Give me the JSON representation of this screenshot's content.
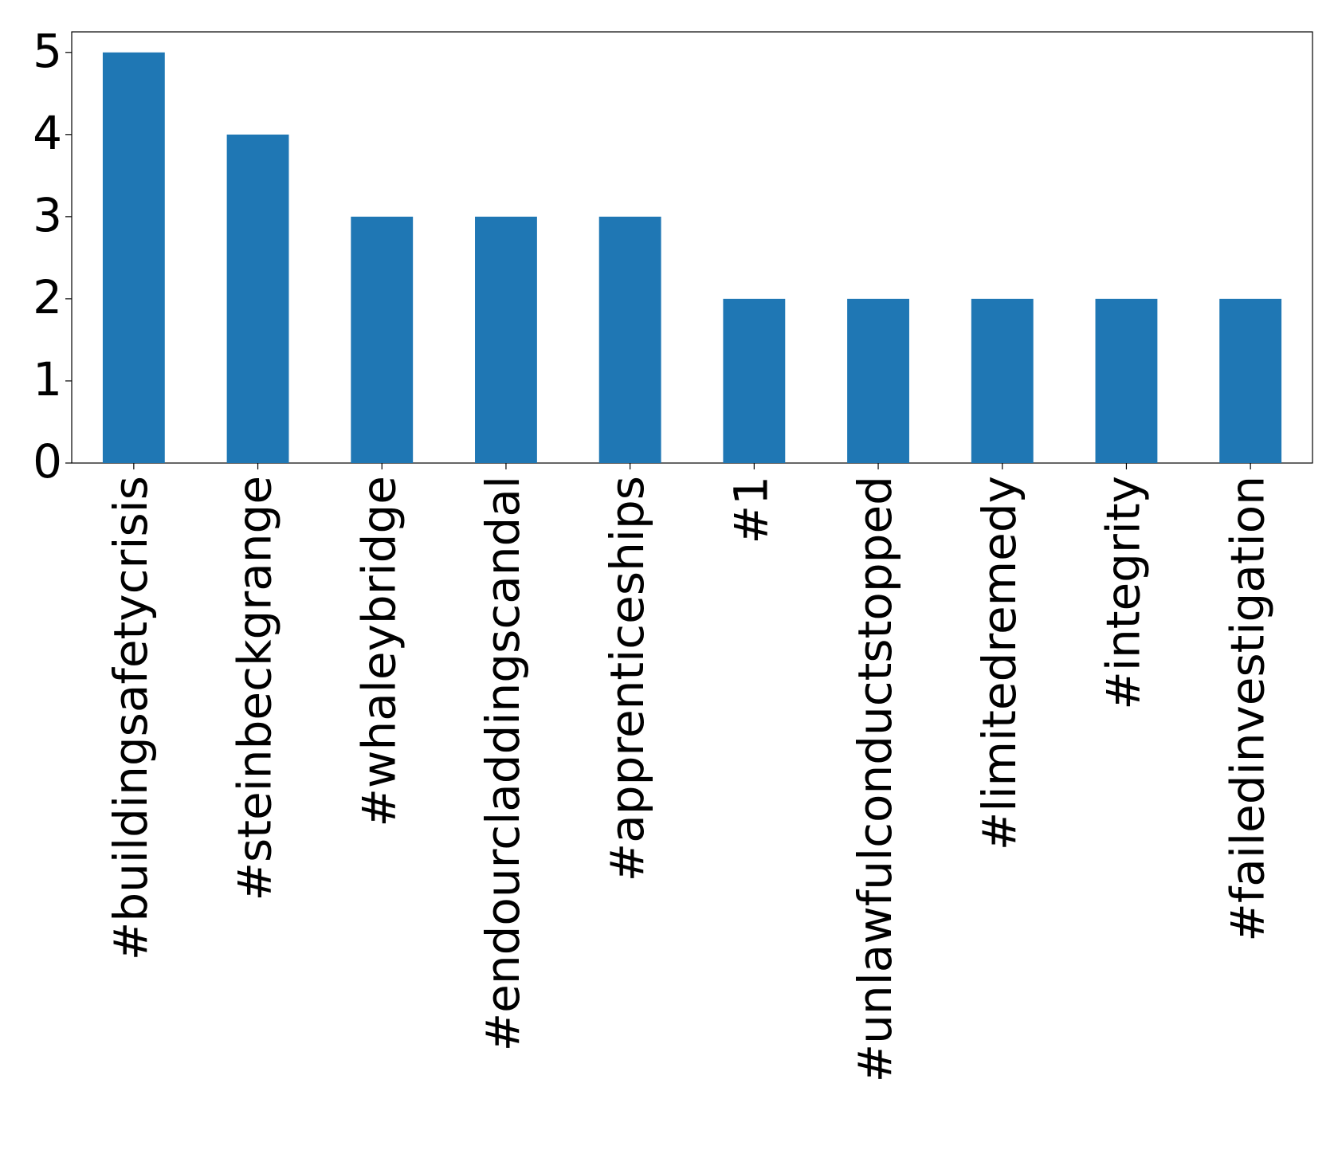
{
  "chart_data": {
    "type": "bar",
    "categories": [
      "#buildingsafetycrisis",
      "#steinbeckgrange",
      "#whaleybridge",
      "#endourcladdingscandal",
      "#apprenticeships",
      "#1",
      "#unlawfulconductstopped",
      "#limitedremedy",
      "#integrity",
      "#failedinvestigation"
    ],
    "values": [
      5,
      4,
      3,
      3,
      3,
      2,
      2,
      2,
      2,
      2
    ],
    "color": "#1f77b4",
    "ylim": [
      0,
      5.25
    ],
    "yticks": [
      0,
      1,
      2,
      3,
      4,
      5
    ],
    "grid": false
  }
}
